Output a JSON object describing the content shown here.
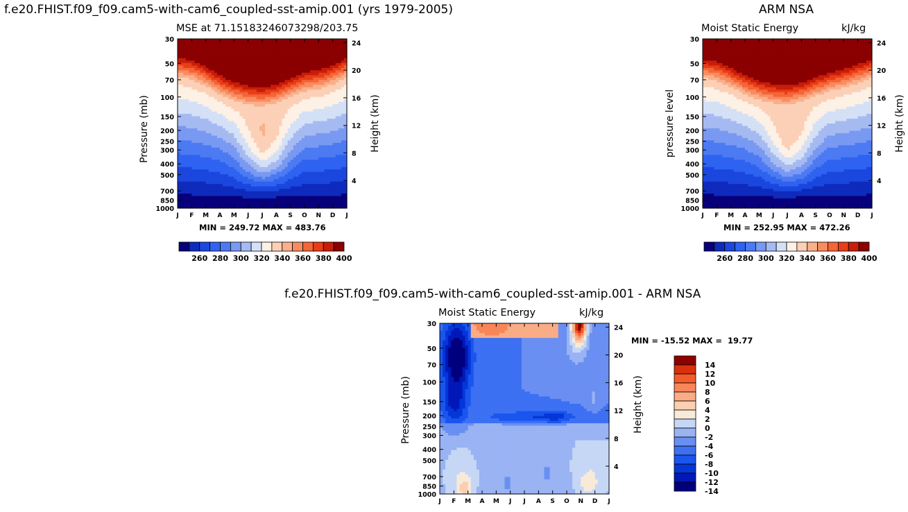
{
  "titles": {
    "left": "f.e20.FHIST.f09_f09.cam5-with-cam6_coupled-sst-amip.001 (yrs 1979-2005)",
    "right": "ARM NSA",
    "diff": "f.e20.FHIST.f09_f09.cam5-with-cam6_coupled-sst-amip.001 - ARM NSA"
  },
  "colors": {
    "mse_scale": [
      "#08007a",
      "#0e2bbd",
      "#1a47de",
      "#2f62f0",
      "#4c7af3",
      "#7999f2",
      "#a6baf2",
      "#d4e0f6",
      "#fdf0e5",
      "#fbd0b6",
      "#f9b08b",
      "#f88c61",
      "#f46538",
      "#e83d17",
      "#c71d09",
      "#8b0000"
    ],
    "diff_scale": [
      "#00007e",
      "#0018b8",
      "#0436d8",
      "#1a55ee",
      "#3d70f3",
      "#6a8ff2",
      "#99b3f3",
      "#c6d7f6",
      "#f8ead9",
      "#fbcfb0",
      "#f9ac85",
      "#f88659",
      "#f45b2b",
      "#d8320d",
      "#8f0000"
    ]
  },
  "chart_data": [
    {
      "type": "contour",
      "title": "MSE at 71.15183246073298/203.75",
      "xlabel": "",
      "ylabel": "Pressure (mb)",
      "ylabel_right": "Height (km)",
      "months": [
        "J",
        "F",
        "M",
        "A",
        "M",
        "J",
        "J",
        "A",
        "S",
        "O",
        "N",
        "D",
        "J"
      ],
      "pressure_ticks": [
        30,
        50,
        70,
        100,
        150,
        200,
        250,
        300,
        400,
        500,
        700,
        850,
        1000
      ],
      "height_ticks": [
        24,
        20,
        16,
        12,
        8,
        4
      ],
      "stats": "MIN = 249.72 MAX = 483.76",
      "colorbar_labels": [
        "260",
        "280",
        "300",
        "320",
        "340",
        "360",
        "380",
        "400"
      ],
      "tropopause_p": [
        68,
        72,
        82,
        98,
        112,
        122,
        126,
        118,
        104,
        92,
        88,
        80,
        68
      ],
      "warm_dip": [
        0,
        0,
        0,
        0,
        0.12,
        0.55,
        0.95,
        0.7,
        0.25,
        0,
        0,
        0,
        0
      ]
    },
    {
      "type": "contour",
      "title": "Moist Static Energy",
      "units": "kJ/kg",
      "ylabel": "pressure level",
      "ylabel_right": "Height (km)",
      "months": [
        "J",
        "F",
        "M",
        "A",
        "M",
        "J",
        "J",
        "A",
        "S",
        "O",
        "N",
        "D",
        "J"
      ],
      "pressure_ticks": [
        30,
        50,
        70,
        100,
        150,
        200,
        250,
        300,
        400,
        500,
        700,
        850,
        1000
      ],
      "height_ticks": [
        24,
        20,
        16,
        12,
        8,
        4
      ],
      "stats": "MIN = 252.95 MAX = 472.26",
      "colorbar_labels": [
        "260",
        "280",
        "300",
        "320",
        "340",
        "360",
        "380",
        "400"
      ],
      "tropopause_p": [
        70,
        74,
        84,
        98,
        110,
        118,
        122,
        114,
        102,
        92,
        86,
        78,
        70
      ],
      "warm_dip": [
        0,
        0,
        0,
        0,
        0.1,
        0.5,
        0.9,
        0.65,
        0.2,
        0,
        0,
        0,
        0
      ]
    },
    {
      "type": "contour",
      "title": "Moist Static Energy",
      "units": "kJ/kg",
      "ylabel": "Pressure (mb)",
      "ylabel_right": "Height (km)",
      "months": [
        "J",
        "F",
        "M",
        "A",
        "M",
        "J",
        "J",
        "A",
        "S",
        "O",
        "N",
        "D",
        "J"
      ],
      "pressure_ticks": [
        30,
        50,
        70,
        100,
        150,
        200,
        250,
        300,
        400,
        500,
        700,
        850,
        1000
      ],
      "height_ticks": [
        24,
        20,
        16,
        12,
        8,
        4
      ],
      "stats": "MIN = -15.52 MAX =  19.77",
      "colorbar_labels": [
        "14",
        "12",
        "10",
        "8",
        "6",
        "4",
        "2",
        "0",
        "-2",
        "-4",
        "-6",
        "-8",
        "-10",
        "-12",
        "-14"
      ]
    }
  ]
}
